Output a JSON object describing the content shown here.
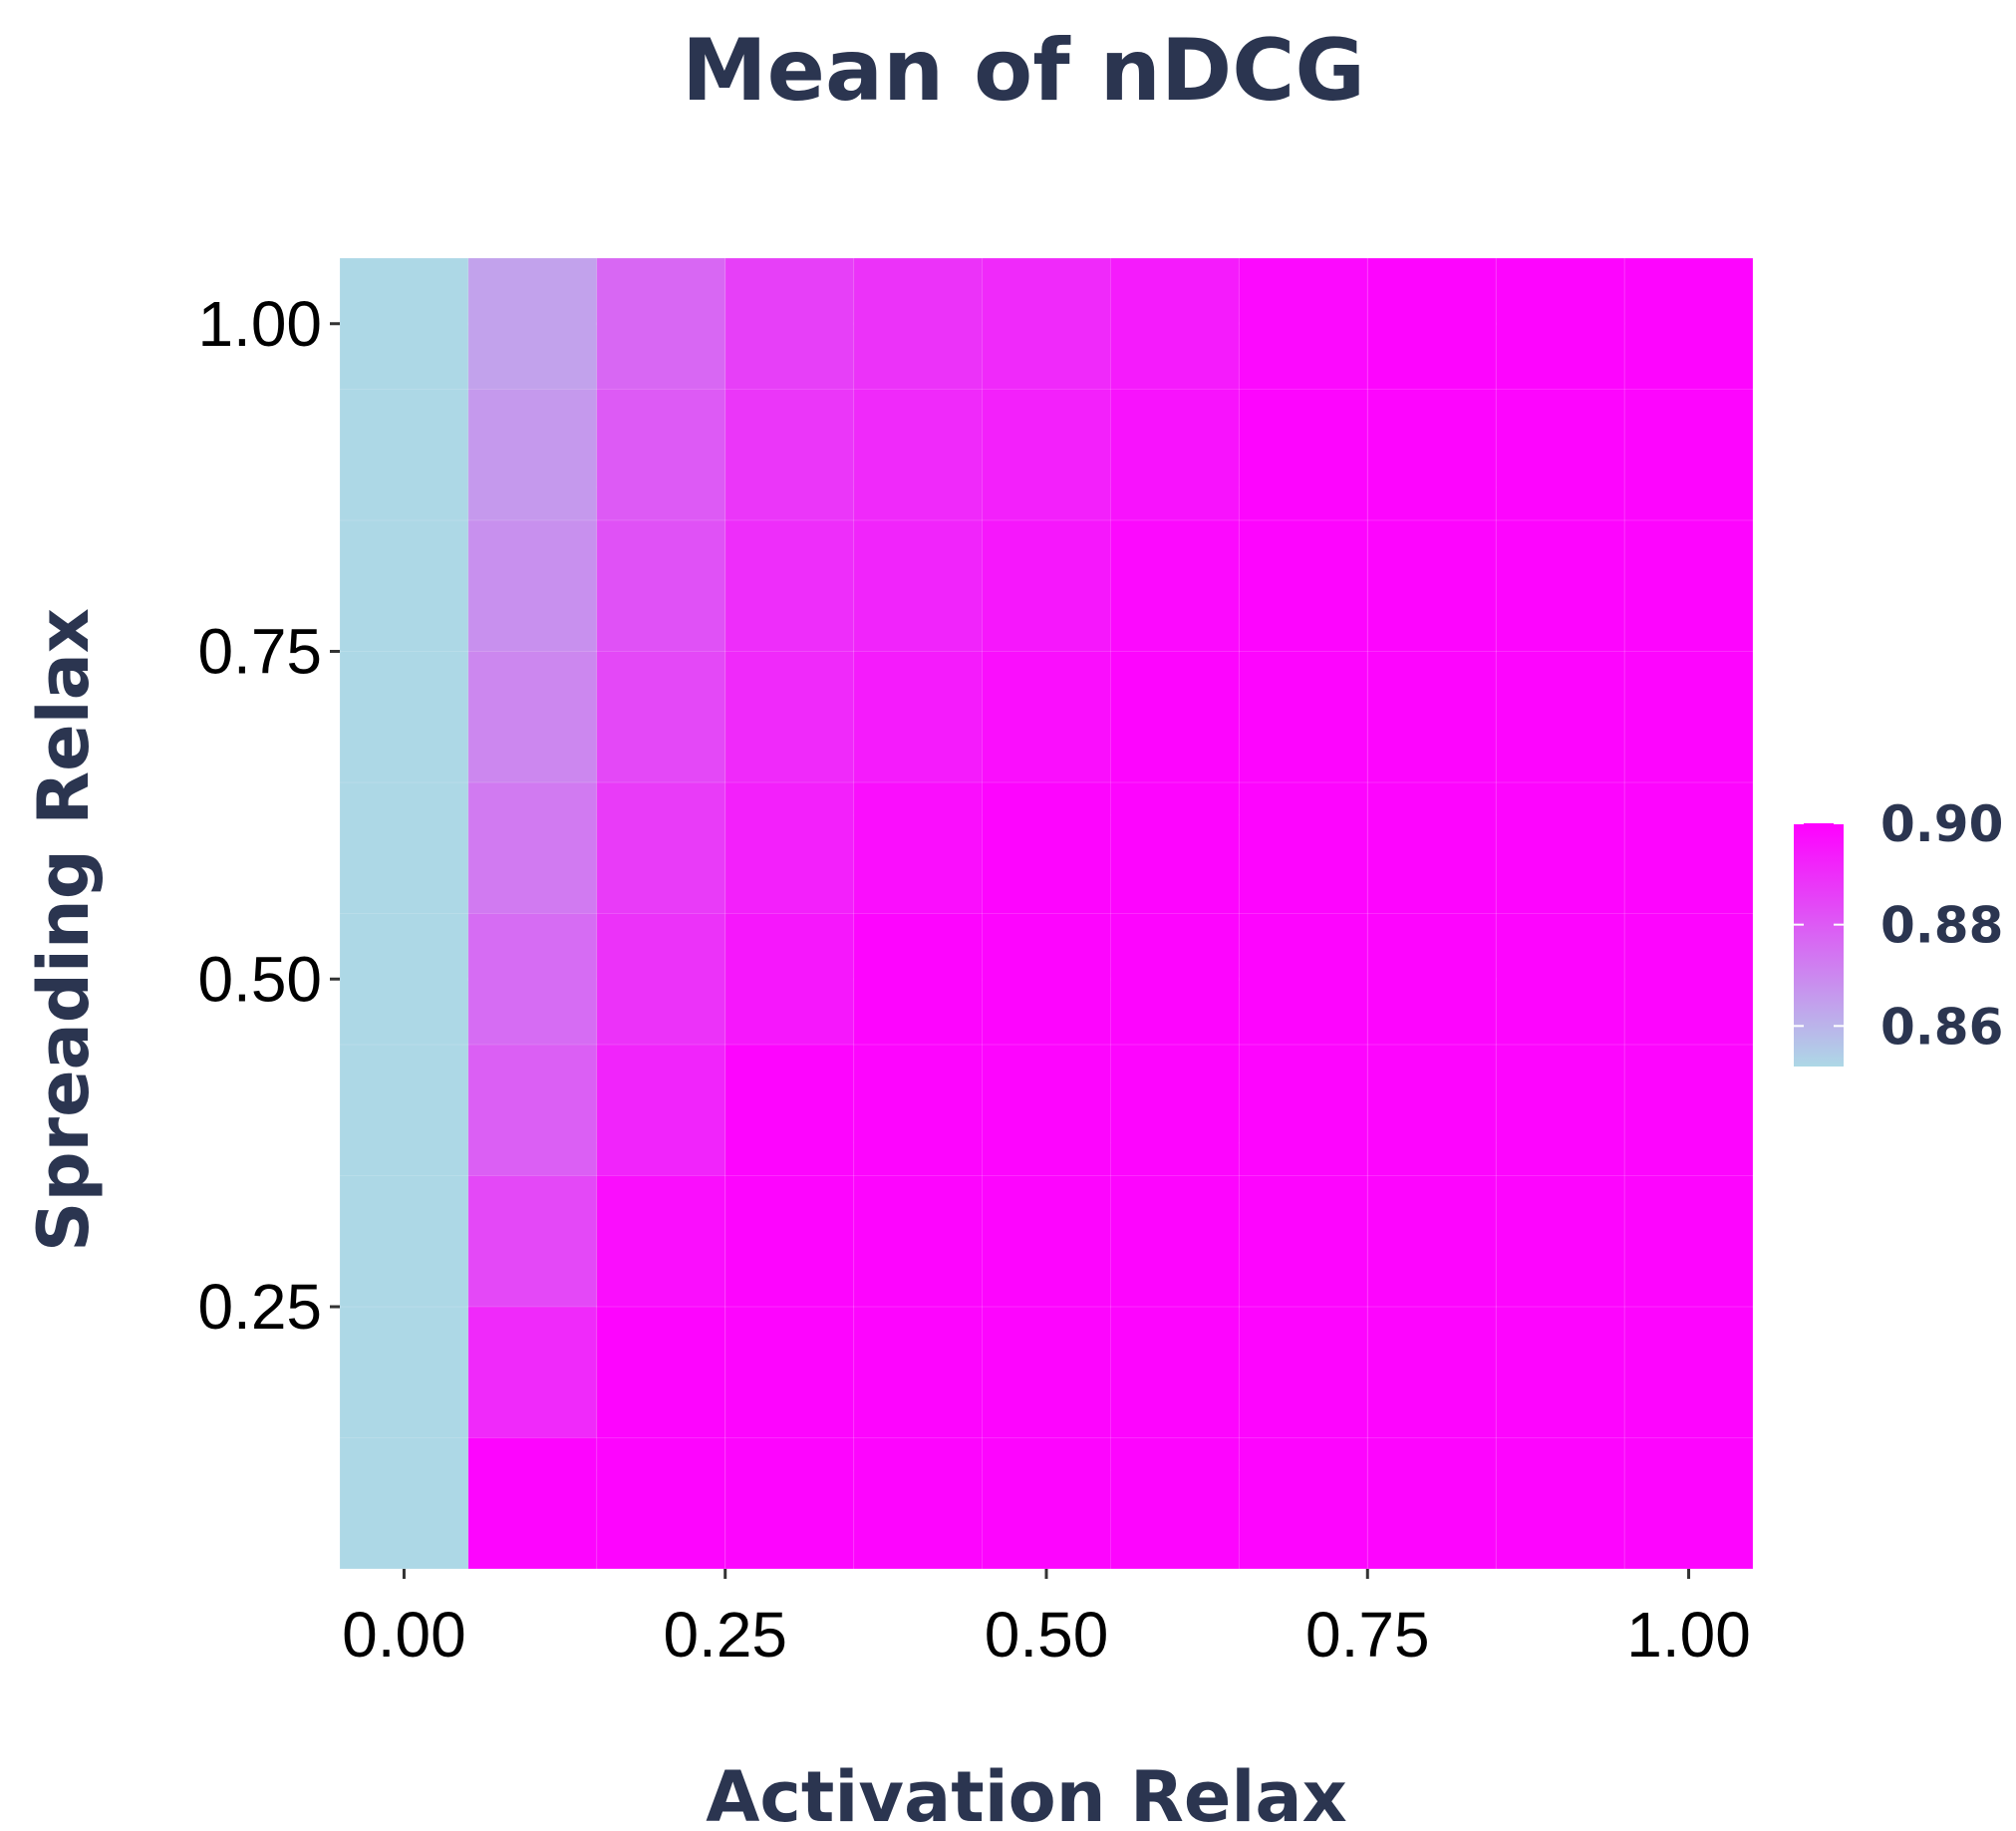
{
  "chart_data": {
    "type": "heatmap",
    "title": "Mean of nDCG",
    "xlabel": "Activation Relax",
    "ylabel": "Spreading Relax",
    "x_ticks": [
      "0.00",
      "0.25",
      "0.50",
      "0.75",
      "1.00"
    ],
    "y_ticks": [
      "0.25",
      "0.50",
      "0.75",
      "1.00"
    ],
    "xlim": [
      -0.05,
      1.05
    ],
    "ylim": [
      0.05,
      1.05
    ],
    "x": [
      0.0,
      0.1,
      0.2,
      0.3,
      0.4,
      0.5,
      0.6,
      0.7,
      0.8,
      0.9,
      1.0
    ],
    "y": [
      0.1,
      0.2,
      0.3,
      0.4,
      0.5,
      0.6,
      0.7,
      0.8,
      0.9,
      1.0
    ],
    "values_by_row_y_desc": [
      [
        0.852,
        0.864,
        0.877,
        0.886,
        0.889,
        0.891,
        0.894,
        0.898,
        0.899,
        0.899,
        0.899
      ],
      [
        0.852,
        0.866,
        0.88,
        0.888,
        0.891,
        0.893,
        0.896,
        0.899,
        0.899,
        0.899,
        0.899
      ],
      [
        0.852,
        0.868,
        0.882,
        0.89,
        0.892,
        0.895,
        0.898,
        0.899,
        0.899,
        0.899,
        0.899
      ],
      [
        0.852,
        0.87,
        0.884,
        0.891,
        0.894,
        0.897,
        0.899,
        0.899,
        0.899,
        0.899,
        0.899
      ],
      [
        0.852,
        0.873,
        0.887,
        0.893,
        0.897,
        0.899,
        0.899,
        0.899,
        0.899,
        0.899,
        0.899
      ],
      [
        0.852,
        0.876,
        0.889,
        0.895,
        0.899,
        0.899,
        0.899,
        0.899,
        0.899,
        0.899,
        0.899
      ],
      [
        0.852,
        0.879,
        0.892,
        0.899,
        0.899,
        0.899,
        0.899,
        0.899,
        0.899,
        0.899,
        0.899
      ],
      [
        0.852,
        0.884,
        0.897,
        0.899,
        0.899,
        0.899,
        0.899,
        0.899,
        0.899,
        0.899,
        0.899
      ],
      [
        0.852,
        0.891,
        0.899,
        0.899,
        0.899,
        0.899,
        0.899,
        0.899,
        0.899,
        0.899,
        0.899
      ],
      [
        0.852,
        0.899,
        0.899,
        0.899,
        0.899,
        0.899,
        0.899,
        0.899,
        0.899,
        0.899,
        0.899
      ]
    ],
    "legend": {
      "placement": "right",
      "min": 0.852,
      "max": 0.9,
      "labels": [
        "0.90",
        "0.88",
        "0.86"
      ],
      "label_values": [
        0.9,
        0.88,
        0.86
      ],
      "low_color": "#add8e6",
      "high_color": "#ff00ff"
    },
    "panel_background": "#e5e5e5",
    "grid": true,
    "grid_color": "#ffffff"
  }
}
